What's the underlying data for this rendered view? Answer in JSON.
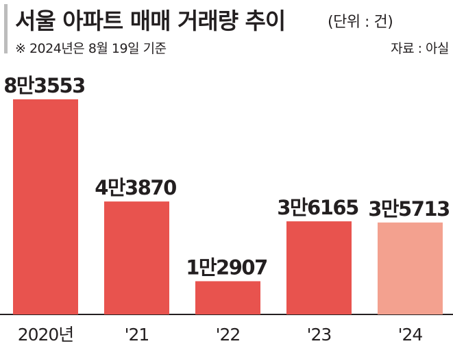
{
  "header": {
    "title": "서울 아파트 매매 거래량 추이",
    "unit": "(단위 : 건)",
    "note": "※ 2024년은 8월 19일 기준",
    "source": "자료 : 아실"
  },
  "colors": {
    "bar": "#e8534e",
    "bar_highlight": "#f3a18f",
    "axis": "#231f20",
    "text": "#231f20"
  },
  "chart_data": {
    "type": "bar",
    "title": "서울 아파트 매매 거래량 추이",
    "categories": [
      "2020년",
      "'21",
      "'22",
      "'23",
      "'24"
    ],
    "values": [
      83553,
      43870,
      12907,
      36165,
      35713
    ],
    "data_labels": [
      "8만3553",
      "4만3870",
      "1만2907",
      "3만6165",
      "3만5713"
    ],
    "ylim": [
      0,
      90000
    ],
    "grid": false,
    "xlabel": "",
    "ylabel": ""
  }
}
